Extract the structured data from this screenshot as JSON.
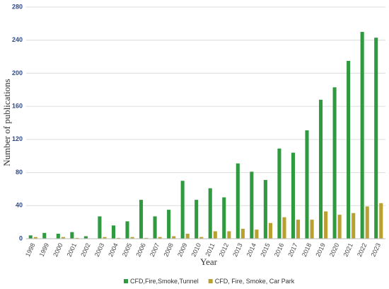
{
  "chart_data": {
    "type": "bar",
    "x_label": "Year",
    "y_label": "Number of publications",
    "categories": [
      "1998",
      "1999",
      "2000",
      "2001",
      "2002",
      "2003",
      "2004",
      "2005",
      "2006",
      "2007",
      "2008",
      "2009",
      "2010",
      "2011",
      "2012",
      "2013",
      "2014",
      "2015",
      "2016",
      "2017",
      "2018",
      "2019",
      "2020",
      "2021",
      "2022",
      "2023"
    ],
    "series": [
      {
        "name": "CFD,Fire,Smoke,Tunnel",
        "color": "#2f9a3f",
        "values": [
          4,
          7,
          6,
          8,
          3,
          27,
          16,
          21,
          47,
          27,
          35,
          70,
          47,
          61,
          50,
          91,
          81,
          71,
          109,
          104,
          131,
          168,
          183,
          215,
          250,
          243
        ]
      },
      {
        "name": "CFD, Fire, Smoke, Car Park",
        "color": "#b8a131",
        "values": [
          2,
          0,
          2,
          1,
          0,
          2,
          1,
          2,
          1,
          2,
          3,
          6,
          2,
          9,
          9,
          12,
          11,
          19,
          26,
          23,
          23,
          33,
          29,
          31,
          39,
          43
        ]
      }
    ],
    "ylim": [
      0,
      280
    ],
    "yticks": [
      0,
      40,
      80,
      120,
      160,
      200,
      240,
      280
    ],
    "grid": true
  }
}
